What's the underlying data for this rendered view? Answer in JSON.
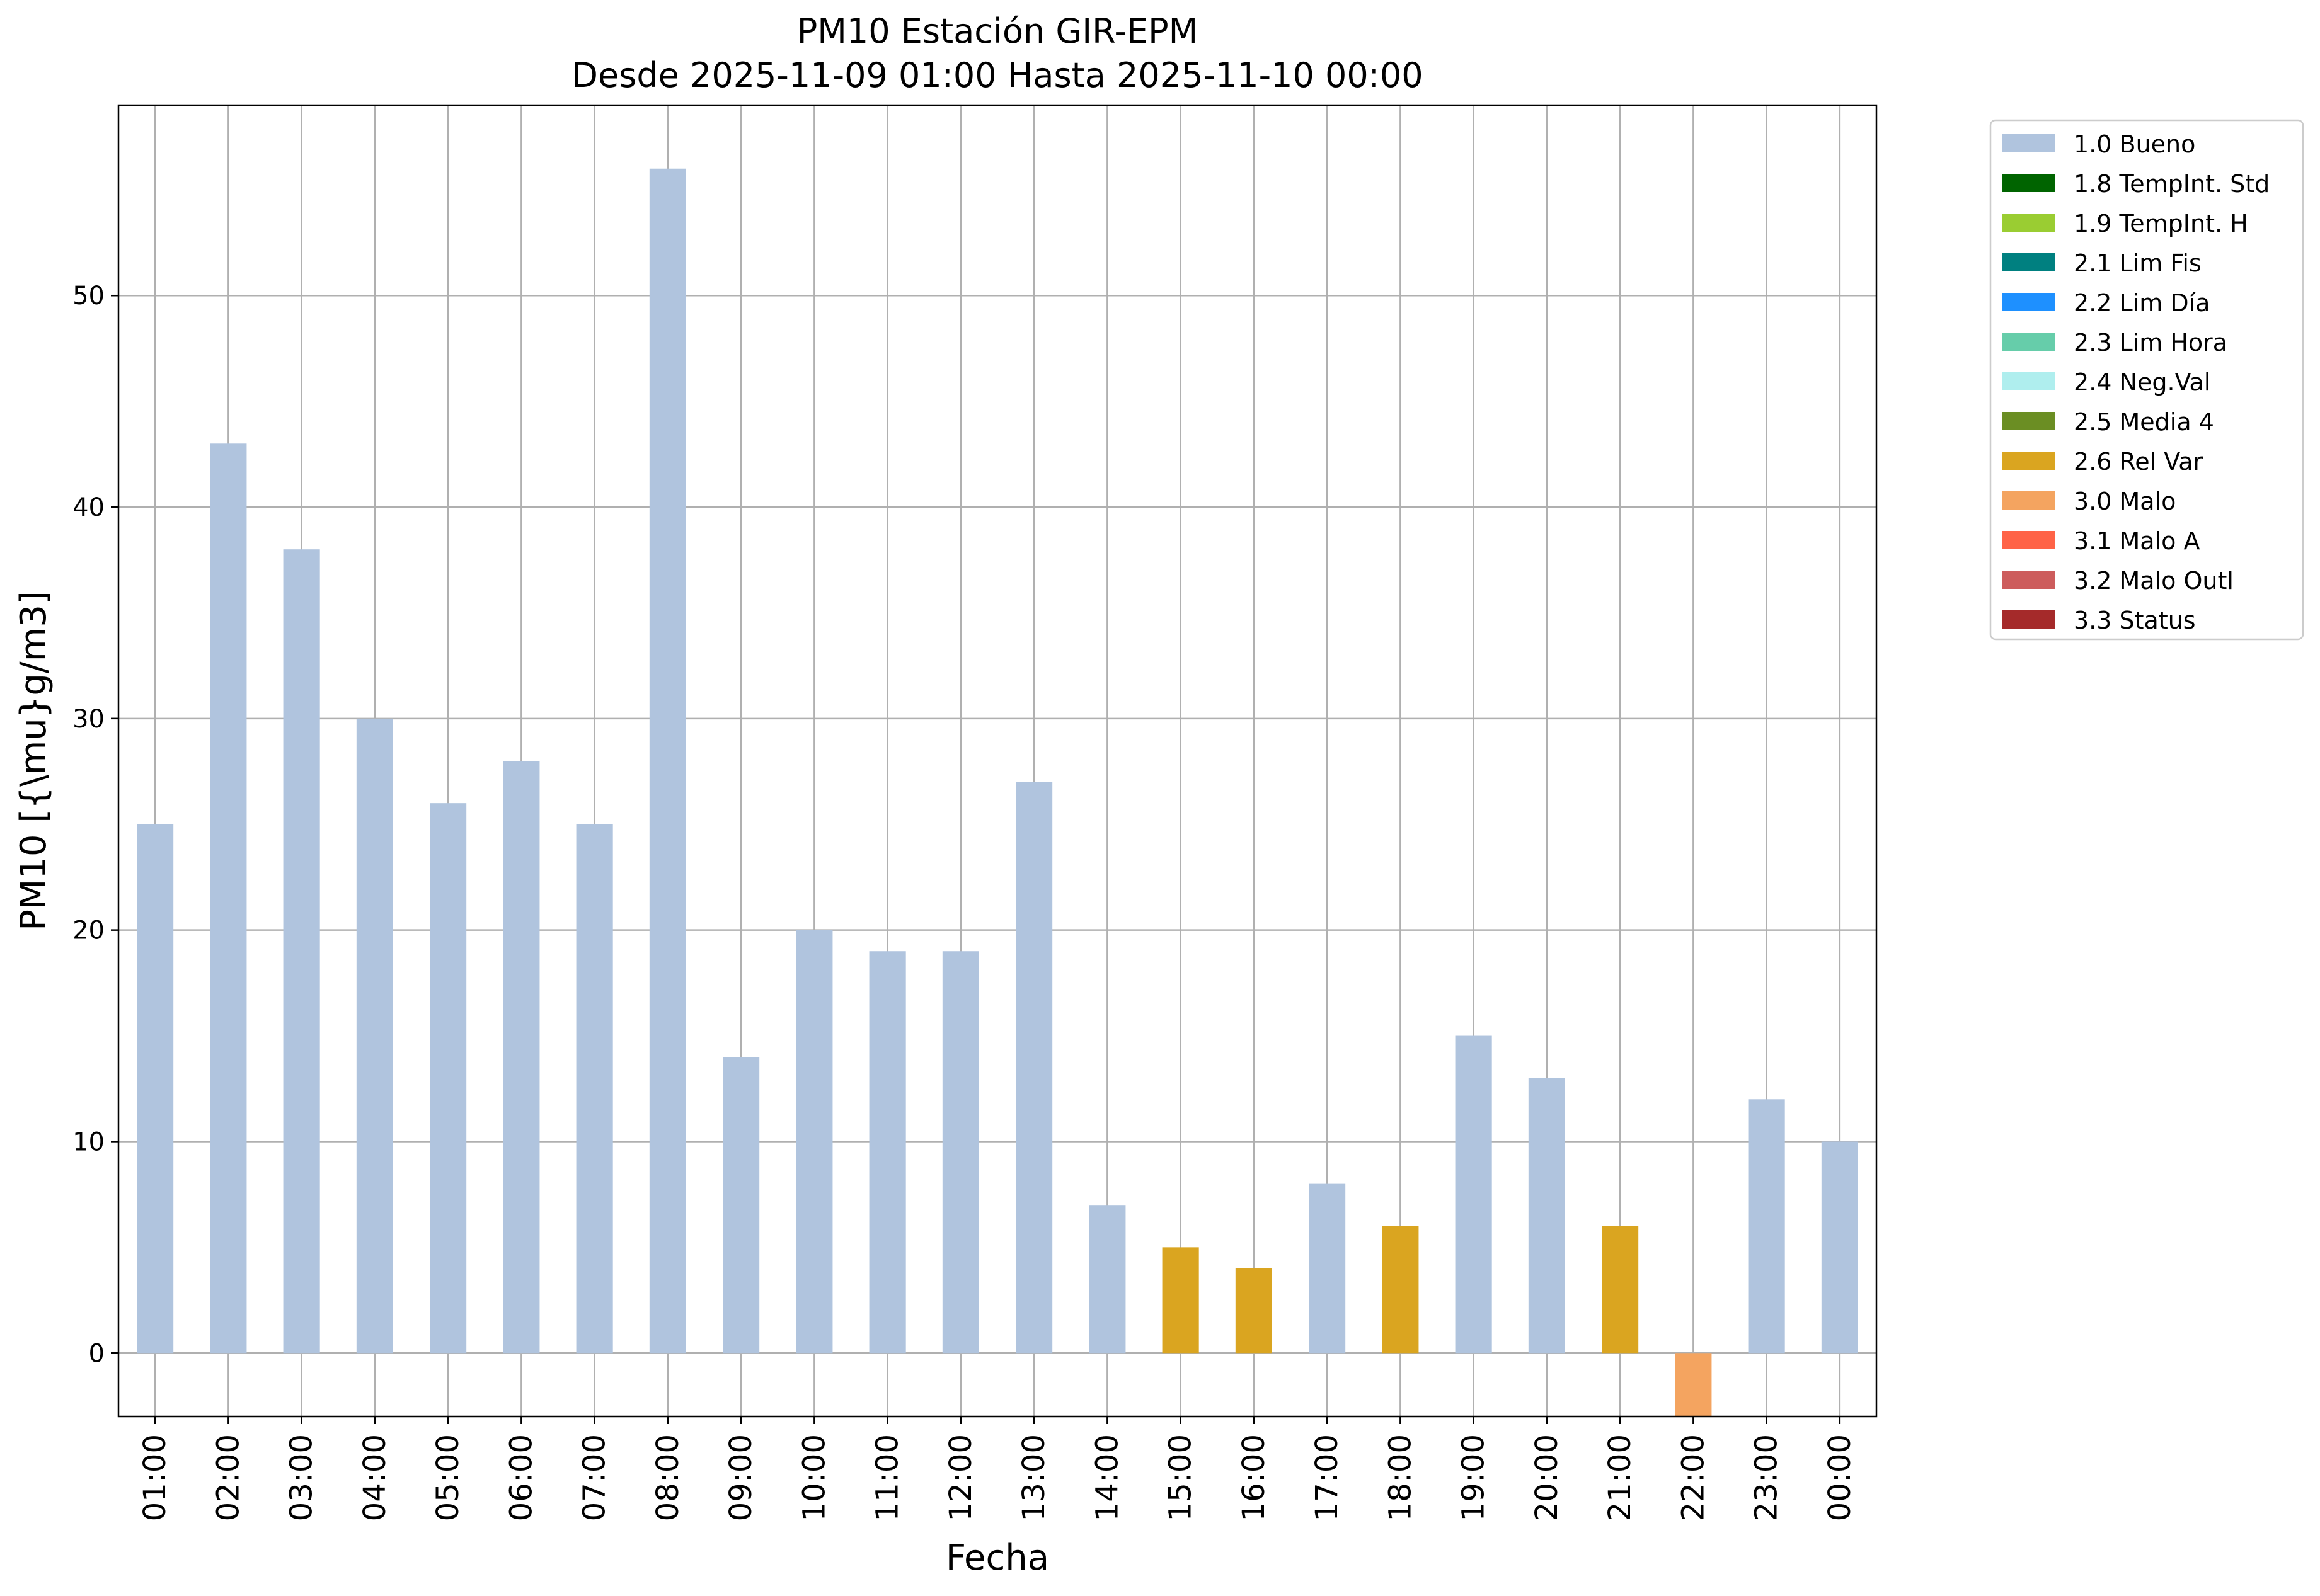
{
  "chart_data": {
    "type": "bar",
    "title": "PM10 Estación GIR-EPM",
    "subtitle": "Desde 2025-11-09 01:00 Hasta 2025-11-10 00:00",
    "xlabel": "Fecha",
    "ylabel": "PM10 [{\\mu}g/m3]",
    "ylim": [
      -3,
      59
    ],
    "yticks": [
      0,
      10,
      20,
      30,
      40,
      50
    ],
    "grid": true,
    "legend_position": "outside-top-right",
    "categories": [
      "01:00",
      "02:00",
      "03:00",
      "04:00",
      "05:00",
      "06:00",
      "07:00",
      "08:00",
      "09:00",
      "10:00",
      "11:00",
      "12:00",
      "13:00",
      "14:00",
      "15:00",
      "16:00",
      "17:00",
      "18:00",
      "19:00",
      "20:00",
      "21:00",
      "22:00",
      "23:00",
      "00:00"
    ],
    "values": [
      25,
      43,
      38,
      30,
      26,
      28,
      25,
      56,
      14,
      20,
      19,
      19,
      27,
      7,
      5,
      4,
      8,
      6,
      15,
      13,
      6,
      -3,
      12,
      10
    ],
    "flags": [
      "1.0 Bueno",
      "1.0 Bueno",
      "1.0 Bueno",
      "1.0 Bueno",
      "1.0 Bueno",
      "1.0 Bueno",
      "1.0 Bueno",
      "1.0 Bueno",
      "1.0 Bueno",
      "1.0 Bueno",
      "1.0 Bueno",
      "1.0 Bueno",
      "1.0 Bueno",
      "1.0 Bueno",
      "2.6 Rel Var",
      "2.6 Rel Var",
      "1.0 Bueno",
      "2.6 Rel Var",
      "1.0 Bueno",
      "1.0 Bueno",
      "2.6 Rel Var",
      "3.0 Malo",
      "1.0 Bueno",
      "1.0 Bueno"
    ],
    "legend": [
      {
        "label": "1.0 Bueno",
        "color": "#b0c4de"
      },
      {
        "label": "1.8 TempInt. Std",
        "color": "#006400"
      },
      {
        "label": "1.9 TempInt. H",
        "color": "#9acd32"
      },
      {
        "label": "2.1 Lim Fis",
        "color": "#008080"
      },
      {
        "label": "2.2 Lim Día",
        "color": "#1e90ff"
      },
      {
        "label": "2.3 Lim Hora",
        "color": "#66cdaa"
      },
      {
        "label": "2.4 Neg.Val",
        "color": "#afeeee"
      },
      {
        "label": "2.5 Media 4",
        "color": "#6b8e23"
      },
      {
        "label": "2.6 Rel Var",
        "color": "#daa520"
      },
      {
        "label": "3.0 Malo",
        "color": "#f4a460"
      },
      {
        "label": "3.1 Malo A",
        "color": "#ff6347"
      },
      {
        "label": "3.2 Malo Outl",
        "color": "#cd5c5c"
      },
      {
        "label": "3.3 Status",
        "color": "#a52a2a"
      }
    ]
  }
}
